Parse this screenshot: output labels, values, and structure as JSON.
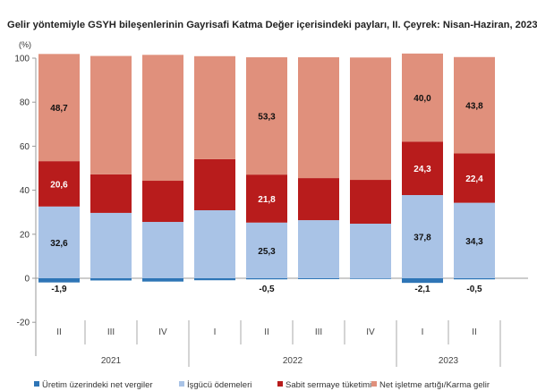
{
  "chart_data": {
    "type": "bar",
    "stacked": true,
    "title": "Gelir yöntemiyle GSYH bileşenlerinin Gayrisafi Katma Değer içerisindeki payları, II. Çeyrek: Nisan-Haziran, 2023",
    "ylabel": "(%)",
    "ylim": [
      -20,
      100
    ],
    "yticks": [
      "100",
      "80",
      "60",
      "40",
      "20",
      "0",
      "-20"
    ],
    "grid": false,
    "legend_position": "bottom",
    "categories": [
      "II",
      "III",
      "IV",
      "I",
      "II",
      "III",
      "IV",
      "I",
      "II"
    ],
    "years": [
      {
        "label": "2021",
        "span": 3
      },
      {
        "label": "2022",
        "span": 4
      },
      {
        "label": "2023",
        "span": 2
      }
    ],
    "series": [
      {
        "name": "Üretim üzerindeki net vergiler",
        "color": "#2e75b6",
        "values": [
          -1.9,
          -1.0,
          -1.5,
          -0.9,
          -0.5,
          -0.4,
          -0.3,
          -2.1,
          -0.5
        ],
        "labels": [
          "-1,9",
          "",
          "",
          "",
          "-0,5",
          "",
          "",
          "-2,1",
          "-0,5"
        ]
      },
      {
        "name": "İşgücü ödemeleri",
        "color": "#a9c3e6",
        "values": [
          32.6,
          29.7,
          25.6,
          30.9,
          25.3,
          26.4,
          24.8,
          37.8,
          34.3
        ],
        "labels": [
          "32,6",
          "",
          "",
          "",
          "25,3",
          "",
          "",
          "37,8",
          "34,3"
        ]
      },
      {
        "name": "Sabit sermaye tüketimi",
        "color": "#b81c1c",
        "values": [
          20.6,
          17.5,
          18.7,
          23.2,
          21.8,
          19.1,
          19.9,
          24.3,
          22.4
        ],
        "labels": [
          "20,6",
          "",
          "",
          "",
          "21,8",
          "",
          "",
          "24,3",
          "22,4"
        ]
      },
      {
        "name": "Net işletme artığı/Karma gelir",
        "color": "#e0907c",
        "values": [
          48.7,
          53.8,
          57.2,
          46.8,
          53.3,
          54.9,
          55.6,
          40.0,
          43.8
        ],
        "labels": [
          "48,7",
          "",
          "",
          "",
          "53,3",
          "",
          "",
          "40,0",
          "43,8"
        ]
      }
    ]
  }
}
